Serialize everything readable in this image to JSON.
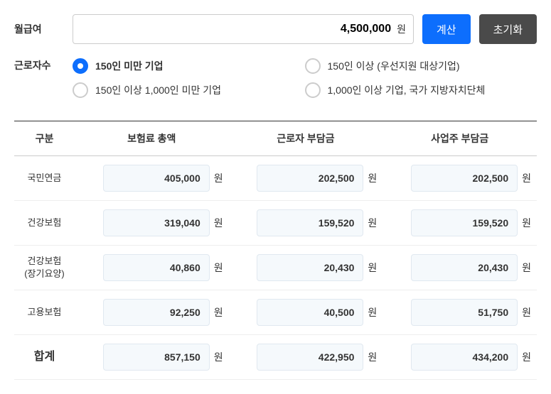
{
  "form": {
    "salary_label": "월급여",
    "salary_value": "4,500,000",
    "salary_unit": "원",
    "calculate_btn": "계산",
    "reset_btn": "초기화",
    "employees_label": "근로자수",
    "radio_options": [
      {
        "label": "150인 미만 기업",
        "selected": true
      },
      {
        "label": "150인 이상 (우선지원 대상기업)",
        "selected": false
      },
      {
        "label": "150인 이상 1,000인 미만 기업",
        "selected": false
      },
      {
        "label": "1,000인 이상 기업, 국가 지방자치단체",
        "selected": false
      }
    ]
  },
  "table": {
    "headers": [
      "구분",
      "보험료 총액",
      "근로자 부담금",
      "사업주 부담금"
    ],
    "unit": "원",
    "rows": [
      {
        "label": "국민연금",
        "total": "405,000",
        "employee": "202,500",
        "employer": "202,500"
      },
      {
        "label": "건강보험",
        "total": "319,040",
        "employee": "159,520",
        "employer": "159,520"
      },
      {
        "label": "건강보험\n(장기요양)",
        "total": "40,860",
        "employee": "20,430",
        "employer": "20,430"
      },
      {
        "label": "고용보험",
        "total": "92,250",
        "employee": "40,500",
        "employer": "51,750"
      }
    ],
    "total": {
      "label": "합계",
      "total": "857,150",
      "employee": "422,950",
      "employer": "434,200"
    }
  },
  "colors": {
    "primary": "#0d6efd",
    "secondary": "#4a4a4a",
    "cell_bg": "#f5f9fc",
    "cell_border": "#e0e8f0"
  }
}
